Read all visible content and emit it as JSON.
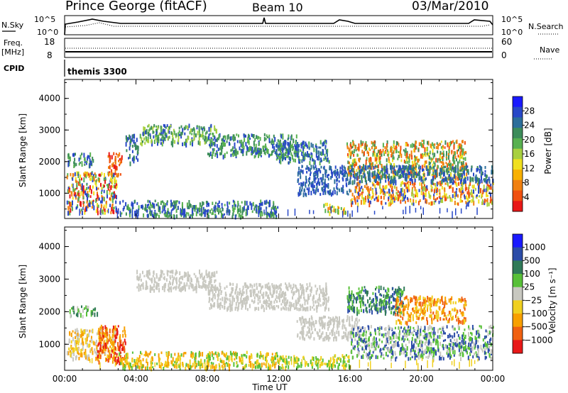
{
  "header": {
    "station": "Prince George (fitACF)",
    "beam": "Beam 10",
    "date": "03/Mar/2010"
  },
  "strips": {
    "nsky_label": "N.Sky",
    "nsky_ticks": [
      "10^5",
      "10^0"
    ],
    "nsearch_label": "N.Search",
    "nsearch_ticks": [
      "10^5",
      "10^0"
    ],
    "freq_label": "Freq.",
    "freq_unit": "[MHz]",
    "freq_ticks": [
      "18",
      "8"
    ],
    "nave_label": "Nave",
    "nave_ticks": [
      "60",
      "0"
    ],
    "cpid_label": "CPID",
    "cpid_value": "themis 3300"
  },
  "chart_data": [
    {
      "type": "heatmap",
      "ylabel": "Slant Range [km]",
      "yticks": [
        "1000",
        "2000",
        "3000",
        "4000"
      ],
      "ylim": [
        200,
        4600
      ],
      "xlim_hours": [
        0,
        24
      ],
      "colorbar": {
        "label": "Power [dB]",
        "ticks": [
          "4",
          "8",
          "12",
          "16",
          "20",
          "24",
          "28"
        ],
        "colors": [
          "#1a1aff",
          "#2848c8",
          "#2c6e9a",
          "#3c8c5a",
          "#58b050",
          "#a8d040",
          "#f0e020",
          "#f8b000",
          "#f08010",
          "#f05010",
          "#e81818"
        ]
      },
      "bands": [
        {
          "t0": 0.1,
          "t1": 2.9,
          "r0": 400,
          "r1": 1700,
          "colors": [
            "#e81818",
            "#f08010",
            "#f0e020",
            "#58b050",
            "#2848c8"
          ]
        },
        {
          "t0": 0.1,
          "t1": 1.6,
          "r0": 1900,
          "r1": 2300,
          "colors": [
            "#58b050",
            "#3c8c5a",
            "#2848c8"
          ]
        },
        {
          "t0": 2.4,
          "t1": 3.2,
          "r0": 1600,
          "r1": 2300,
          "colors": [
            "#e81818",
            "#f05010",
            "#f08010"
          ]
        },
        {
          "t0": 3.4,
          "t1": 4.1,
          "r0": 2000,
          "r1": 2900,
          "colors": [
            "#2848c8",
            "#3c8c5a"
          ]
        },
        {
          "t0": 4.2,
          "t1": 8.5,
          "r0": 2600,
          "r1": 3200,
          "colors": [
            "#2848c8",
            "#3c8c5a",
            "#58b050",
            "#a8d040"
          ]
        },
        {
          "t0": 8.0,
          "t1": 13.0,
          "r0": 2200,
          "r1": 2900,
          "colors": [
            "#2848c8",
            "#3c8c5a",
            "#58b050"
          ]
        },
        {
          "t0": 11.8,
          "t1": 14.8,
          "r0": 2000,
          "r1": 2700,
          "colors": [
            "#2848c8",
            "#2c6e9a",
            "#58b050"
          ]
        },
        {
          "t0": 3.0,
          "t1": 12.0,
          "r0": 300,
          "r1": 800,
          "colors": [
            "#2848c8",
            "#3c8c5a",
            "#58b050"
          ]
        },
        {
          "t0": 13.0,
          "t1": 16.0,
          "r0": 1000,
          "r1": 1900,
          "colors": [
            "#2848c8",
            "#2c6e9a"
          ]
        },
        {
          "t0": 14.5,
          "t1": 15.8,
          "r0": 400,
          "r1": 700,
          "colors": [
            "#f08010",
            "#f0e020",
            "#58b050"
          ]
        },
        {
          "t0": 15.8,
          "t1": 22.5,
          "r0": 1500,
          "r1": 2700,
          "colors": [
            "#f08010",
            "#f05010",
            "#f0e020",
            "#58b050",
            "#3c8c5a"
          ]
        },
        {
          "t0": 16.0,
          "t1": 24.0,
          "r0": 700,
          "r1": 1400,
          "colors": [
            "#f08010",
            "#f05010",
            "#f0e020",
            "#a8d040",
            "#2848c8"
          ]
        },
        {
          "t0": 15.9,
          "t1": 24.0,
          "r0": 1400,
          "r1": 1900,
          "colors": [
            "#2848c8",
            "#2c6e9a",
            "#3c8c5a"
          ]
        }
      ]
    },
    {
      "type": "heatmap",
      "ylabel": "Slant Range [km]",
      "yticks": [
        "1000",
        "2000",
        "3000",
        "4000"
      ],
      "ylim": [
        200,
        4600
      ],
      "xlim_hours": [
        0,
        24
      ],
      "xticks": [
        "00:00",
        "04:00",
        "08:00",
        "12:00",
        "16:00",
        "20:00",
        "00:00"
      ],
      "xlabel": "Time UT",
      "colorbar": {
        "label": "Velocity [m s⁻¹]",
        "ticks": [
          "1000",
          "500",
          "100",
          "25",
          "−25",
          "−100",
          "−500",
          "−1000"
        ],
        "colors": [
          "#1a1aff",
          "#2c4ca8",
          "#307a58",
          "#58c038",
          "#c8c8c0",
          "#f0d020",
          "#f8a000",
          "#f06010",
          "#e81818"
        ]
      },
      "bands": [
        {
          "t0": 0.1,
          "t1": 2.9,
          "r0": 600,
          "r1": 1500,
          "colors": [
            "#c8c8c0",
            "#f0d020",
            "#f8a000"
          ]
        },
        {
          "t0": 1.8,
          "t1": 3.4,
          "r0": 500,
          "r1": 1600,
          "colors": [
            "#f06010",
            "#f8a000",
            "#e81818"
          ]
        },
        {
          "t0": 0.2,
          "t1": 1.8,
          "r0": 1900,
          "r1": 2200,
          "colors": [
            "#c8c8c0",
            "#58c038",
            "#307a58"
          ]
        },
        {
          "t0": 4.0,
          "t1": 8.5,
          "r0": 2700,
          "r1": 3300,
          "colors": [
            "#c8c8c0"
          ]
        },
        {
          "t0": 8.0,
          "t1": 14.8,
          "r0": 2100,
          "r1": 2900,
          "colors": [
            "#c8c8c0"
          ]
        },
        {
          "t0": 3.0,
          "t1": 12.0,
          "r0": 300,
          "r1": 800,
          "colors": [
            "#f0d020",
            "#f8a000",
            "#58c038"
          ]
        },
        {
          "t0": 12.0,
          "t1": 16.0,
          "r0": 300,
          "r1": 700,
          "colors": [
            "#f0d020",
            "#58c038"
          ]
        },
        {
          "t0": 13.0,
          "t1": 16.5,
          "r0": 1200,
          "r1": 1900,
          "colors": [
            "#c8c8c0"
          ]
        },
        {
          "t0": 15.8,
          "t1": 19.0,
          "r0": 2000,
          "r1": 2800,
          "colors": [
            "#307a58",
            "#58c038",
            "#2c4ca8"
          ]
        },
        {
          "t0": 18.5,
          "t1": 22.5,
          "r0": 1700,
          "r1": 2500,
          "colors": [
            "#f06010",
            "#f8a000",
            "#f0d020"
          ]
        },
        {
          "t0": 16.0,
          "t1": 24.0,
          "r0": 600,
          "r1": 1600,
          "colors": [
            "#c8c8c0",
            "#58c038",
            "#2c4ca8"
          ]
        }
      ]
    }
  ]
}
